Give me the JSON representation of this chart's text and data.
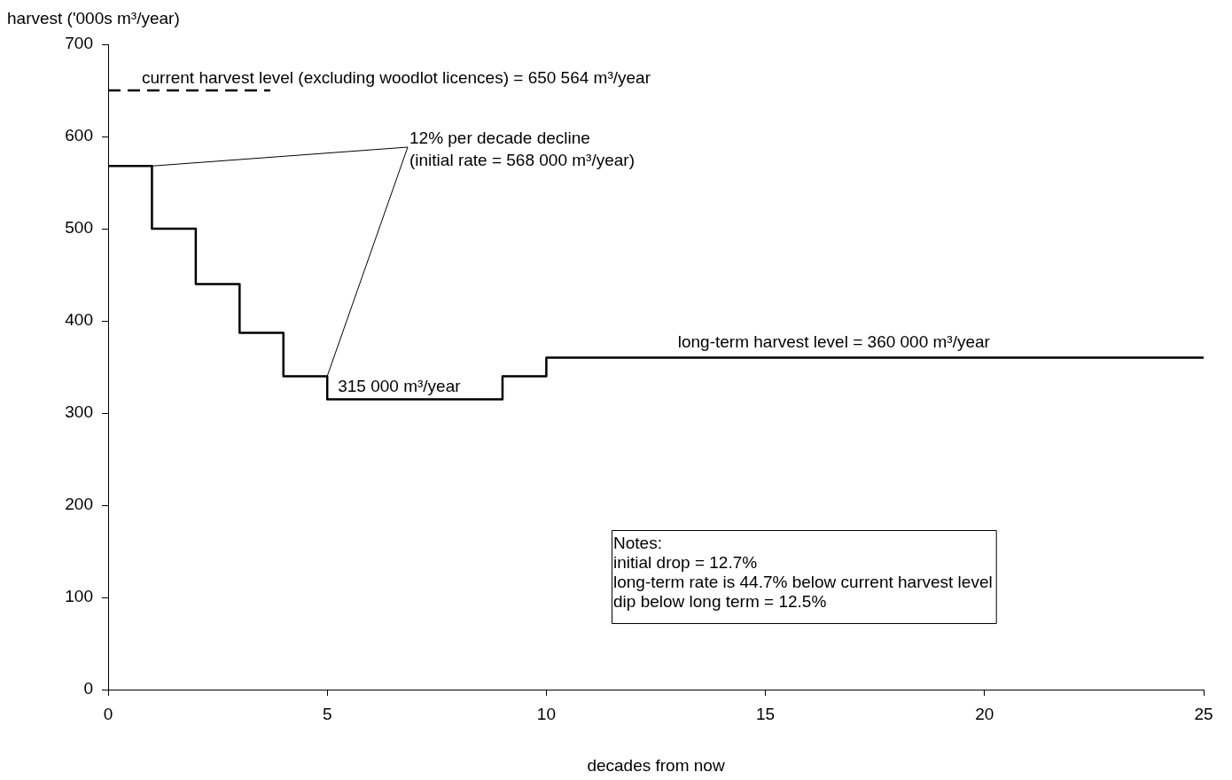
{
  "chart_data": {
    "type": "step",
    "xlabel": "decades from now",
    "ylabel": "harvest ('000s m³/year)",
    "xlim": [
      0,
      25
    ],
    "xticks": [
      0,
      5,
      10,
      15,
      20,
      25
    ],
    "ylim": [
      0,
      700
    ],
    "yticks": [
      0,
      100,
      200,
      300,
      400,
      500,
      600,
      700
    ],
    "grid": false,
    "legend": false,
    "marker": "none",
    "series": [
      {
        "color": "#000000",
        "x": [
          0,
          1,
          2,
          3,
          4,
          5,
          9,
          10,
          25
        ],
        "values": [
          568,
          500,
          440,
          387,
          340,
          315,
          340,
          360,
          360
        ]
      },
      {
        "type": "line",
        "line_style": "dashed",
        "color": "#000000",
        "x": [
          0,
          3.7
        ],
        "values": [
          650,
          650
        ]
      }
    ],
    "annotations": [
      {
        "text": "current harvest level (excluding woodlot licences) = 650 564 m³/year",
        "x": 0,
        "y": 650
      },
      {
        "text": "12% per decade decline\n(initial rate = 568 000 m³/year)",
        "x": 1,
        "y": 568
      },
      {
        "text": "315 000 m³/year",
        "x": 5,
        "y": 315
      },
      {
        "text": "long-term harvest level = 360 000 m³/year",
        "x": 13,
        "y": 360
      },
      "Notes:\ninitial drop = 12.7%\nlong-term rate is 44.7% below current harvest level\ndip below long term = 12.5%"
    ]
  }
}
